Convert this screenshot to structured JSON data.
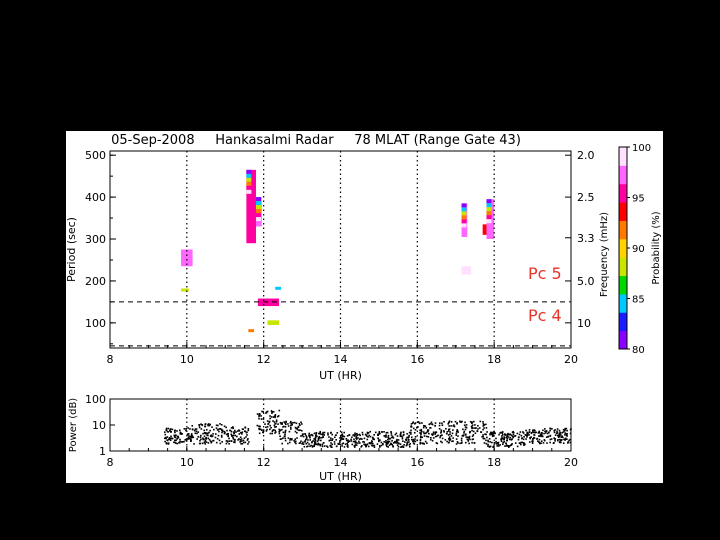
{
  "chart_data": [
    {
      "type": "heatmap",
      "title": "05-Sep-2008     Hankasalmi Radar     78 MLAT (Range Gate 43)",
      "xlabel": "UT (HR)",
      "ylabel": "Period (sec)",
      "y2label": "Frequency (mHz)",
      "xlim": [
        8,
        20
      ],
      "ylim": [
        40,
        510
      ],
      "x_ticks": [
        8,
        10,
        12,
        14,
        16,
        18,
        20
      ],
      "y_ticks": [
        100,
        200,
        300,
        400,
        500
      ],
      "y2_ticks": [
        {
          "label": "2.0",
          "period": 500
        },
        {
          "label": "2.5",
          "period": 400
        },
        {
          "label": "3.3",
          "period": 303
        },
        {
          "label": "5.0",
          "period": 200
        },
        {
          "label": "10",
          "period": 100
        }
      ],
      "vertical_dotted_lines_ut": [
        10,
        12,
        14,
        16,
        18
      ],
      "horizontal_dashed_lines_period": [
        150,
        45
      ],
      "band_labels": [
        {
          "text": "Pc 5",
          "period": 200
        },
        {
          "text": "Pc 4",
          "period": 100
        }
      ],
      "band_label_color": "#e8322a",
      "segments": [
        {
          "ut_start": 9.85,
          "ut_end": 10.15,
          "period_start": 235,
          "period_end": 275,
          "probability": 97
        },
        {
          "ut_start": 9.85,
          "ut_end": 10.05,
          "period_start": 175,
          "period_end": 182,
          "probability": 88
        },
        {
          "ut_start": 11.55,
          "ut_end": 11.8,
          "period_start": 290,
          "period_end": 465,
          "probability": 96
        },
        {
          "ut_start": 11.8,
          "ut_end": 11.95,
          "period_start": 330,
          "period_end": 400,
          "probability": 97
        },
        {
          "ut_start": 11.85,
          "ut_end": 12.4,
          "period_start": 140,
          "period_end": 158,
          "probability": 96
        },
        {
          "ut_start": 12.3,
          "ut_end": 12.45,
          "period_start": 180,
          "period_end": 186,
          "probability": 85
        },
        {
          "ut_start": 12.1,
          "ut_end": 12.4,
          "period_start": 95,
          "period_end": 106,
          "probability": 88
        },
        {
          "ut_start": 11.6,
          "ut_end": 11.75,
          "period_start": 80,
          "period_end": 85,
          "probability": 92
        },
        {
          "ut_start": 17.15,
          "ut_end": 17.3,
          "period_start": 305,
          "period_end": 385,
          "probability": 97
        },
        {
          "ut_start": 17.15,
          "ut_end": 17.4,
          "period_start": 215,
          "period_end": 235,
          "probability": 99
        },
        {
          "ut_start": 17.7,
          "ut_end": 17.85,
          "period_start": 310,
          "period_end": 335,
          "probability": 93
        },
        {
          "ut_start": 17.8,
          "ut_end": 18.0,
          "period_start": 300,
          "period_end": 395,
          "probability": 97
        }
      ],
      "colorbar": {
        "label": "Probability (%)",
        "min": 80,
        "max": 100,
        "ticks": [
          80,
          85,
          90,
          95,
          100
        ],
        "colors": [
          "#8a00ff",
          "#1b1bff",
          "#00c8ff",
          "#00d800",
          "#c8e600",
          "#ffd200",
          "#ff7a00",
          "#ff0000",
          "#ff00a0",
          "#ff66ff",
          "#ffe0ff"
        ]
      }
    },
    {
      "type": "scatter",
      "xlabel": "UT (HR)",
      "ylabel": "Power (dB)",
      "xlim": [
        8,
        20
      ],
      "ylim": [
        1,
        100
      ],
      "yscale": "log",
      "x_ticks": [
        8,
        10,
        12,
        14,
        16,
        18,
        20
      ],
      "y_ticks": [
        1,
        10,
        100
      ],
      "vertical_dotted_lines_ut": [
        10,
        12,
        14,
        16,
        18
      ],
      "activity_ranges": [
        {
          "ut_start": 9.4,
          "ut_end": 10.0,
          "power_low": 2,
          "power_high": 8
        },
        {
          "ut_start": 10.0,
          "ut_end": 11.0,
          "power_low": 2,
          "power_high": 12
        },
        {
          "ut_start": 11.0,
          "ut_end": 11.6,
          "power_low": 2,
          "power_high": 9
        },
        {
          "ut_start": 11.8,
          "ut_end": 12.4,
          "power_low": 5,
          "power_high": 40
        },
        {
          "ut_start": 12.4,
          "ut_end": 13.0,
          "power_low": 2,
          "power_high": 15
        },
        {
          "ut_start": 13.0,
          "ut_end": 15.8,
          "power_low": 1.5,
          "power_high": 6
        },
        {
          "ut_start": 15.8,
          "ut_end": 17.8,
          "power_low": 2,
          "power_high": 15
        },
        {
          "ut_start": 17.8,
          "ut_end": 18.8,
          "power_low": 1.5,
          "power_high": 6
        },
        {
          "ut_start": 18.8,
          "ut_end": 20.0,
          "power_low": 2,
          "power_high": 8
        }
      ]
    }
  ]
}
